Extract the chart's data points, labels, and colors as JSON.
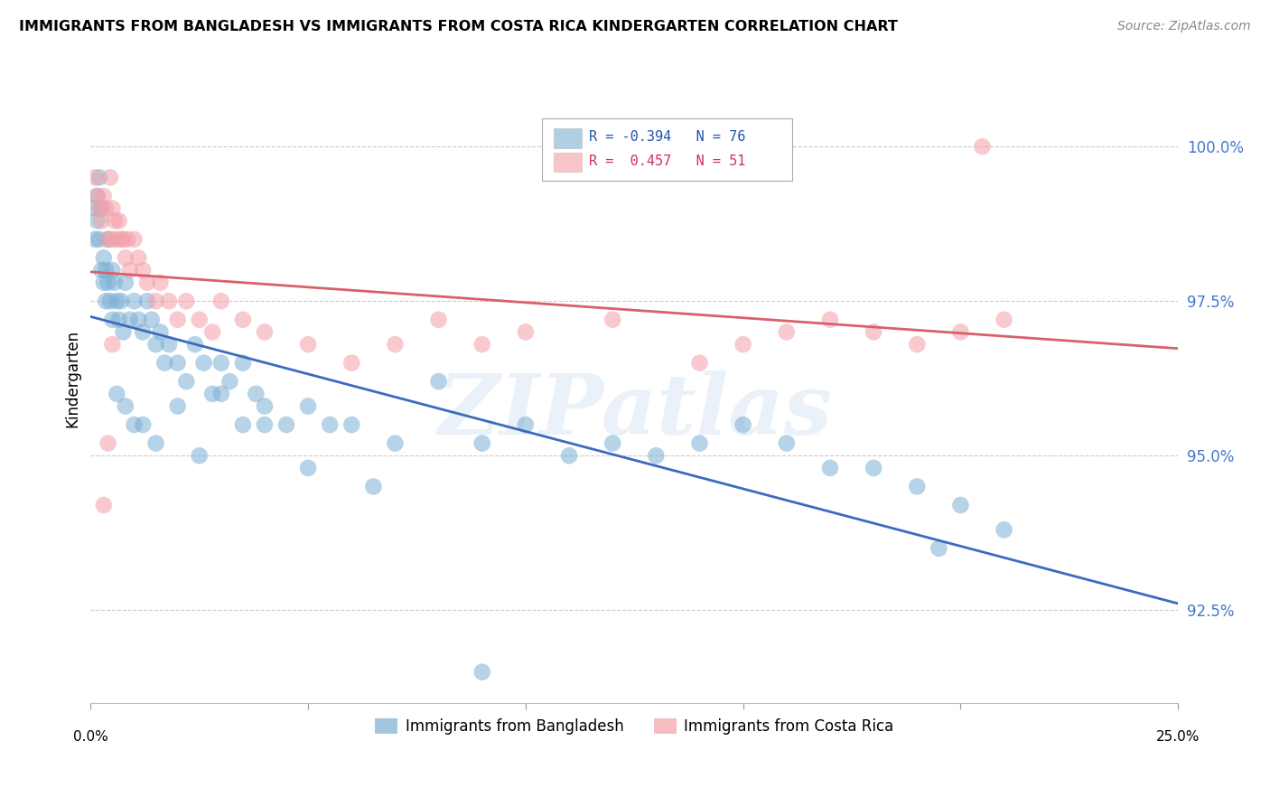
{
  "title": "IMMIGRANTS FROM BANGLADESH VS IMMIGRANTS FROM COSTA RICA KINDERGARTEN CORRELATION CHART",
  "source": "Source: ZipAtlas.com",
  "ylabel": "Kindergarten",
  "yticks": [
    92.5,
    95.0,
    97.5,
    100.0
  ],
  "ytick_labels": [
    "92.5%",
    "95.0%",
    "97.5%",
    "100.0%"
  ],
  "xlim": [
    0.0,
    25.0
  ],
  "ylim": [
    91.0,
    101.5
  ],
  "legend_bangladesh": "Immigrants from Bangladesh",
  "legend_costarica": "Immigrants from Costa Rica",
  "R_bangladesh": -0.394,
  "N_bangladesh": 76,
  "R_costarica": 0.457,
  "N_costarica": 51,
  "color_bangladesh": "#7BAFD4",
  "color_costarica": "#F4A0A8",
  "color_bangladesh_line": "#3B6BBF",
  "color_costarica_line": "#D9606A",
  "watermark": "ZIPatlas",
  "bangladesh_x": [
    0.1,
    0.1,
    0.15,
    0.15,
    0.2,
    0.2,
    0.25,
    0.25,
    0.3,
    0.3,
    0.35,
    0.35,
    0.4,
    0.4,
    0.45,
    0.5,
    0.5,
    0.55,
    0.6,
    0.65,
    0.7,
    0.75,
    0.8,
    0.9,
    1.0,
    1.1,
    1.2,
    1.3,
    1.4,
    1.5,
    1.6,
    1.7,
    1.8,
    2.0,
    2.2,
    2.4,
    2.6,
    2.8,
    3.0,
    3.2,
    3.5,
    3.8,
    4.0,
    4.5,
    5.0,
    5.5,
    6.0,
    7.0,
    8.0,
    9.0,
    10.0,
    11.0,
    12.0,
    13.0,
    14.0,
    15.0,
    16.0,
    17.0,
    18.0,
    19.0,
    20.0,
    21.0,
    0.6,
    0.8,
    1.0,
    1.2,
    1.5,
    2.0,
    2.5,
    3.0,
    3.5,
    4.0,
    5.0,
    6.5,
    9.0,
    19.5
  ],
  "bangladesh_y": [
    99.0,
    98.5,
    99.2,
    98.8,
    98.5,
    99.5,
    98.0,
    99.0,
    98.2,
    97.8,
    98.0,
    97.5,
    97.8,
    98.5,
    97.5,
    98.0,
    97.2,
    97.8,
    97.5,
    97.2,
    97.5,
    97.0,
    97.8,
    97.2,
    97.5,
    97.2,
    97.0,
    97.5,
    97.2,
    96.8,
    97.0,
    96.5,
    96.8,
    96.5,
    96.2,
    96.8,
    96.5,
    96.0,
    96.5,
    96.2,
    96.5,
    96.0,
    95.8,
    95.5,
    95.8,
    95.5,
    95.5,
    95.2,
    96.2,
    95.2,
    95.5,
    95.0,
    95.2,
    95.0,
    95.2,
    95.5,
    95.2,
    94.8,
    94.8,
    94.5,
    94.2,
    93.8,
    96.0,
    95.8,
    95.5,
    95.5,
    95.2,
    95.8,
    95.0,
    96.0,
    95.5,
    95.5,
    94.8,
    94.5,
    91.5,
    93.5
  ],
  "costarica_x": [
    0.1,
    0.15,
    0.2,
    0.25,
    0.3,
    0.35,
    0.4,
    0.45,
    0.5,
    0.5,
    0.55,
    0.6,
    0.65,
    0.7,
    0.75,
    0.8,
    0.85,
    0.9,
    1.0,
    1.1,
    1.2,
    1.3,
    1.5,
    1.6,
    1.8,
    2.0,
    2.2,
    2.5,
    2.8,
    3.0,
    3.5,
    4.0,
    5.0,
    6.0,
    7.0,
    8.0,
    9.0,
    10.0,
    12.0,
    14.0,
    15.0,
    16.0,
    17.0,
    18.0,
    19.0,
    20.0,
    21.0,
    0.3,
    0.4,
    0.5,
    20.5
  ],
  "costarica_y": [
    99.5,
    99.2,
    99.0,
    98.8,
    99.2,
    99.0,
    98.5,
    99.5,
    98.5,
    99.0,
    98.8,
    98.5,
    98.8,
    98.5,
    98.5,
    98.2,
    98.5,
    98.0,
    98.5,
    98.2,
    98.0,
    97.8,
    97.5,
    97.8,
    97.5,
    97.2,
    97.5,
    97.2,
    97.0,
    97.5,
    97.2,
    97.0,
    96.8,
    96.5,
    96.8,
    97.2,
    96.8,
    97.0,
    97.2,
    96.5,
    96.8,
    97.0,
    97.2,
    97.0,
    96.8,
    97.0,
    97.2,
    94.2,
    95.2,
    96.8,
    100.0
  ],
  "watermark_text": "ZIPatlas"
}
